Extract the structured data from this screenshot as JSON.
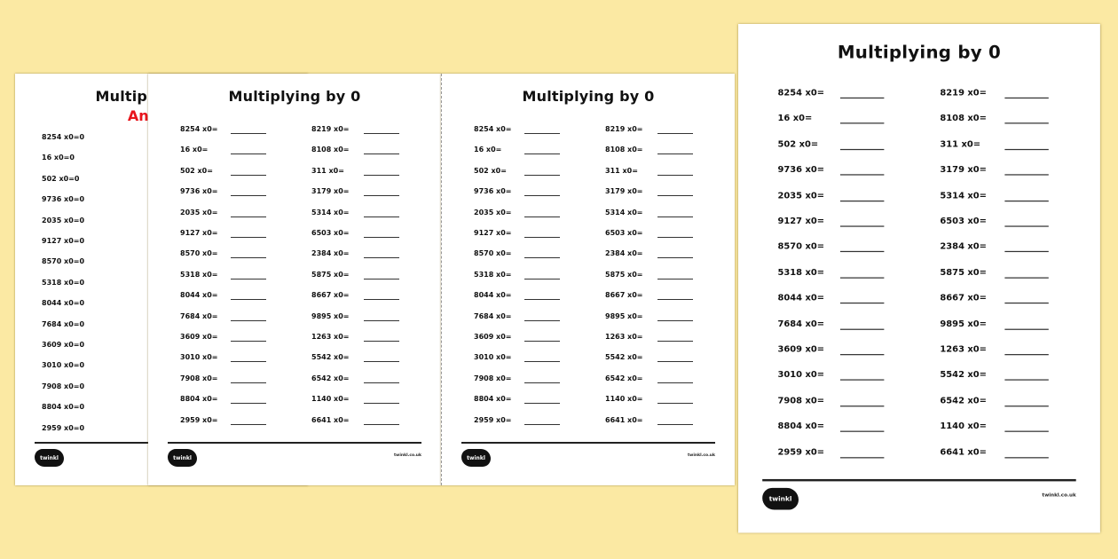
{
  "worksheet": {
    "title": "Multiplying by 0",
    "answers_title": "Answers",
    "site": "twinkl.co.uk",
    "logo": "twinkl",
    "left": [
      "8254 x0=",
      "16 x0=",
      "502 x0=",
      "9736 x0=",
      "2035 x0=",
      "9127 x0=",
      "8570 x0=",
      "5318 x0=",
      "8044 x0=",
      "7684 x0=",
      "3609 x0=",
      "3010 x0=",
      "7908 x0=",
      "8804 x0=",
      "2959 x0="
    ],
    "right": [
      "8219 x0=",
      "8108 x0=",
      "311 x0=",
      "3179 x0=",
      "5314 x0=",
      "6503 x0=",
      "2384 x0=",
      "5875 x0=",
      "8667 x0=",
      "9895 x0=",
      "1263 x0=",
      "5542 x0=",
      "6542 x0=",
      "1140 x0=",
      "6641 x0="
    ],
    "answers_left": [
      "8254 x0=0",
      "16 x0=0",
      "502 x0=0",
      "9736 x0=0",
      "2035 x0=0",
      "9127 x0=0",
      "8570 x0=0",
      "5318 x0=0",
      "8044 x0=0",
      "7684 x0=0",
      "3609 x0=0",
      "3010 x0=0",
      "7908 x0=0",
      "8804 x0=0",
      "2959 x0=0"
    ]
  },
  "colors": {
    "background": "#fbe9a3",
    "answers_heading": "#e8141b"
  }
}
